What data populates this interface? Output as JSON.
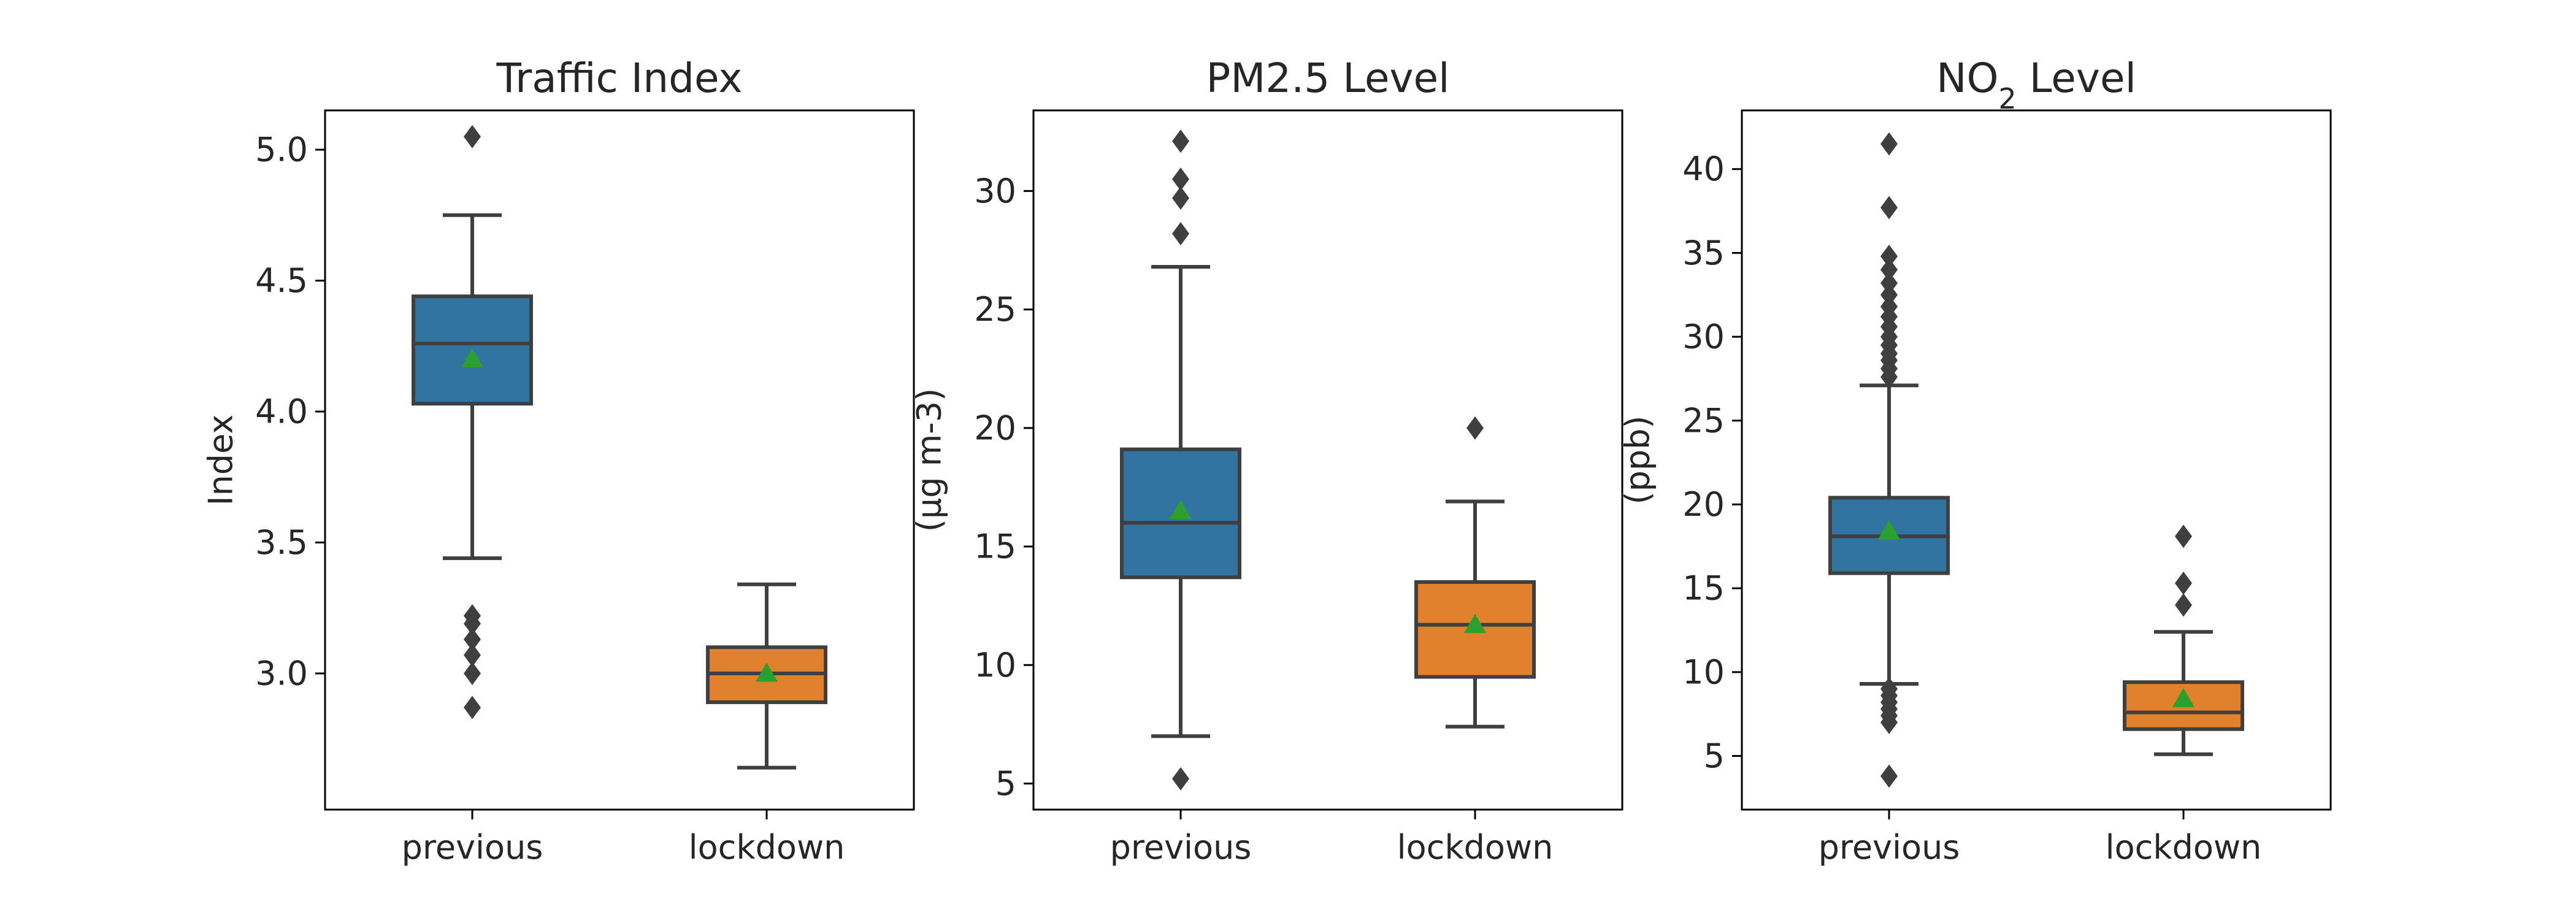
{
  "colors": {
    "previous": "#3274a1",
    "lockdown": "#e1812c",
    "edge": "#3f3f3f",
    "mean_marker": "#2ca02c",
    "axes": "#000000"
  },
  "chart_data": [
    {
      "type": "box",
      "title": "Traffic Index",
      "title_main": "Traffic Index",
      "title_sub": "",
      "title_rest": "",
      "xlabel": "",
      "ylabel": "Index",
      "ylim": [
        2.48,
        5.15
      ],
      "yticks": [
        3.0,
        3.5,
        4.0,
        4.5,
        5.0
      ],
      "ytick_labels": [
        "3.0",
        "3.5",
        "4.0",
        "4.5",
        "5.0"
      ],
      "categories": [
        "previous",
        "lockdown"
      ],
      "boxes": [
        {
          "name": "previous",
          "whisker_low": 3.44,
          "q1": 4.03,
          "median": 4.26,
          "q3": 4.44,
          "whisker_high": 4.75,
          "mean": 4.2,
          "outliers": [
            2.87,
            3.0,
            3.07,
            3.13,
            3.19,
            3.22,
            5.05
          ]
        },
        {
          "name": "lockdown",
          "whisker_low": 2.64,
          "q1": 2.89,
          "median": 3.0,
          "q3": 3.1,
          "whisker_high": 3.34,
          "mean": 3.0,
          "outliers": []
        }
      ]
    },
    {
      "type": "box",
      "title": "PM2.5 Level",
      "title_main": "PM2.5 Level",
      "title_sub": "",
      "title_rest": "",
      "xlabel": "",
      "ylabel": "(μg m-3)",
      "ylim": [
        3.9,
        33.4
      ],
      "yticks": [
        5,
        10,
        15,
        20,
        25,
        30
      ],
      "ytick_labels": [
        "5",
        "10",
        "15",
        "20",
        "25",
        "30"
      ],
      "categories": [
        "previous",
        "lockdown"
      ],
      "boxes": [
        {
          "name": "previous",
          "whisker_low": 7.0,
          "q1": 13.7,
          "median": 16.0,
          "q3": 19.1,
          "whisker_high": 26.8,
          "mean": 16.5,
          "outliers": [
            5.2,
            28.2,
            29.7,
            30.5,
            32.1
          ]
        },
        {
          "name": "lockdown",
          "whisker_low": 7.4,
          "q1": 9.5,
          "median": 11.7,
          "q3": 13.5,
          "whisker_high": 16.9,
          "mean": 11.7,
          "outliers": [
            20.0
          ]
        }
      ]
    },
    {
      "type": "box",
      "title": "NO2 Level",
      "title_main": "NO",
      "title_sub": "2",
      "title_rest": " Level",
      "xlabel": "",
      "ylabel": "(ppb)",
      "ylim": [
        1.8,
        43.5
      ],
      "yticks": [
        5,
        10,
        15,
        20,
        25,
        30,
        35,
        40
      ],
      "ytick_labels": [
        "5",
        "10",
        "15",
        "20",
        "25",
        "30",
        "35",
        "40"
      ],
      "categories": [
        "previous",
        "lockdown"
      ],
      "boxes": [
        {
          "name": "previous",
          "whisker_low": 9.3,
          "q1": 15.9,
          "median": 18.1,
          "q3": 20.4,
          "whisker_high": 27.1,
          "mean": 18.4,
          "outliers": [
            3.8,
            7.0,
            7.4,
            7.8,
            8.2,
            8.6,
            9.0,
            27.6,
            28.1,
            28.6,
            29.0,
            29.5,
            30.0,
            30.6,
            31.2,
            31.8,
            32.5,
            33.2,
            34.0,
            34.8,
            37.7,
            41.5
          ]
        },
        {
          "name": "lockdown",
          "whisker_low": 5.1,
          "q1": 6.6,
          "median": 7.6,
          "q3": 9.4,
          "whisker_high": 12.4,
          "mean": 8.4,
          "outliers": [
            14.0,
            15.3,
            18.1
          ]
        }
      ]
    }
  ]
}
